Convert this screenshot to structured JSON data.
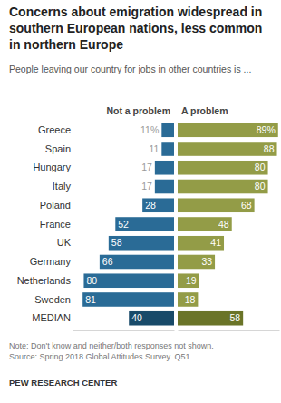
{
  "chart_data": {
    "type": "bar",
    "orientation": "horizontal",
    "title": "Concerns about emigration widespread in southern European nations, less common in northern Europe",
    "subtitle": "People leaving our country for jobs in other countries is ...",
    "categories": [
      "Greece",
      "Spain",
      "Hungary",
      "Italy",
      "Poland",
      "France",
      "UK",
      "Germany",
      "Netherlands",
      "Sweden",
      "MEDIAN"
    ],
    "series": [
      {
        "name": "Not a problem",
        "colors": [
          "#2a6b96",
          "#2a6b96",
          "#2a6b96",
          "#2a6b96",
          "#2a6b96",
          "#2a6b96",
          "#2a6b96",
          "#2a6b96",
          "#2a6b96",
          "#2a6b96",
          "#184a69"
        ],
        "values": [
          11,
          11,
          17,
          17,
          28,
          52,
          58,
          66,
          80,
          81,
          40
        ],
        "value_labels": [
          "11%",
          "11",
          "17",
          "17",
          "28",
          "52",
          "58",
          "66",
          "80",
          "81",
          "40"
        ]
      },
      {
        "name": "A problem",
        "colors": [
          "#939c47",
          "#939c47",
          "#939c47",
          "#939c47",
          "#939c47",
          "#939c47",
          "#939c47",
          "#939c47",
          "#939c47",
          "#939c47",
          "#6a7428"
        ],
        "values": [
          89,
          88,
          80,
          80,
          68,
          48,
          41,
          33,
          19,
          18,
          58
        ],
        "value_labels": [
          "89%",
          "88",
          "80",
          "80",
          "68",
          "48",
          "41",
          "33",
          "19",
          "18",
          "58"
        ]
      }
    ],
    "xlim": [
      0,
      90
    ],
    "tick_labels": false,
    "data_labels": true,
    "grid": false,
    "notes": [
      "Note: Don't know and neither/both responses not shown.",
      "Source: Spring 2018 Global Attitudes Survey. Q51."
    ],
    "credit": "PEW RESEARCH CENTER"
  }
}
